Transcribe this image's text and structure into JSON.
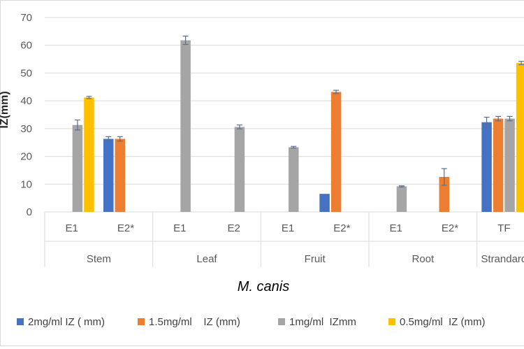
{
  "chart_data": {
    "type": "bar",
    "ylabel": "IZ(mm)",
    "xlabel": "M. canis",
    "ylim": [
      0,
      70
    ],
    "yticks": [
      "0",
      "10",
      "20",
      "30",
      "40",
      "50",
      "60",
      "70"
    ],
    "grid": true,
    "legend_position": "bottom",
    "groups": [
      "Stem",
      "Leaf",
      "Fruit",
      "Root",
      "Strandard"
    ],
    "categories": [
      "E1",
      "E2*",
      "E1",
      "E2",
      "E1",
      "E2*",
      "E1",
      "E2*",
      "TF"
    ],
    "category_group": [
      0,
      0,
      1,
      1,
      2,
      2,
      3,
      3,
      4
    ],
    "series": [
      {
        "name": "2mg/ml IZ ( mm)",
        "color": "#4472C4",
        "values": [
          null,
          26.3,
          null,
          null,
          null,
          6.5,
          null,
          null,
          32.3
        ],
        "errors": [
          null,
          0.8,
          null,
          null,
          null,
          0,
          null,
          null,
          1.8
        ]
      },
      {
        "name": "1.5mg/ml    IZ (mm)",
        "color": "#ED7D31",
        "values": [
          null,
          26.3,
          null,
          null,
          null,
          43.2,
          null,
          12.6,
          33.6
        ],
        "errors": [
          null,
          0.8,
          null,
          null,
          null,
          0.6,
          null,
          3.0,
          0.8
        ]
      },
      {
        "name": "1mg/ml  IZmm",
        "color": "#A5A5A5",
        "values": [
          31.3,
          null,
          61.8,
          30.6,
          23.3,
          null,
          9.2,
          null,
          33.6
        ],
        "errors": [
          1.8,
          null,
          1.5,
          0.7,
          0.3,
          null,
          0.2,
          null,
          0.8
        ]
      },
      {
        "name": "0.5mg/ml  IZ (mm)",
        "color": "#FFC000",
        "values": [
          41.2,
          null,
          null,
          null,
          null,
          null,
          null,
          null,
          53.6
        ],
        "errors": [
          0.4,
          null,
          null,
          null,
          null,
          null,
          null,
          null,
          0.6
        ]
      }
    ]
  }
}
